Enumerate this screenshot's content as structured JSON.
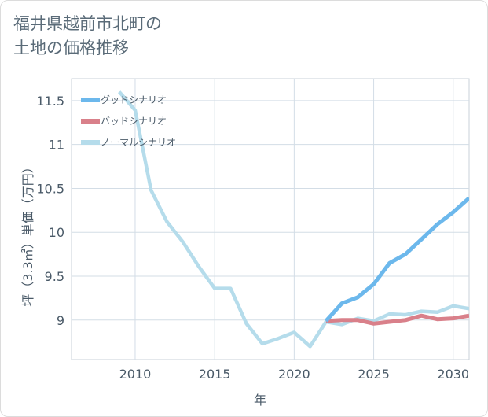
{
  "title": {
    "line1": "福井県越前市北町の",
    "line2": "土地の価格推移"
  },
  "chart_data": {
    "type": "line",
    "xlabel": "年",
    "ylabel": "坪（3.3㎡）単価（万円）",
    "xlim": [
      2006,
      2031
    ],
    "ylim": [
      8.55,
      11.75
    ],
    "xticks": [
      2010,
      2015,
      2020,
      2025,
      2030
    ],
    "yticks": [
      9,
      9.5,
      10,
      10.5,
      11,
      11.5
    ],
    "ytick_labels": [
      "9",
      "9.5",
      "10",
      "10.5",
      "11",
      "11.5"
    ],
    "grid": true,
    "legend_position": "top-left",
    "series": [
      {
        "name": "グッドシナリオ",
        "color": "#6cb8ec",
        "x": [
          2022,
          2023,
          2024,
          2025,
          2026,
          2027,
          2028,
          2029,
          2030,
          2031
        ],
        "y": [
          8.99,
          9.19,
          9.26,
          9.41,
          9.65,
          9.75,
          9.92,
          10.09,
          10.23,
          10.39
        ]
      },
      {
        "name": "バッドシナリオ",
        "color": "#d9808a",
        "x": [
          2022,
          2023,
          2024,
          2025,
          2026,
          2027,
          2028,
          2029,
          2030,
          2031
        ],
        "y": [
          8.99,
          9.0,
          9.0,
          8.96,
          8.98,
          9.0,
          9.05,
          9.01,
          9.02,
          9.05
        ]
      },
      {
        "name": "ノーマルシナリオ",
        "color": "#b5dceb",
        "x": [
          2009,
          2010,
          2011,
          2012,
          2013,
          2014,
          2015,
          2016,
          2017,
          2018,
          2019,
          2020,
          2021,
          2022,
          2023,
          2024,
          2025,
          2026,
          2027,
          2028,
          2029,
          2030,
          2031
        ],
        "y": [
          11.6,
          11.39,
          10.48,
          10.12,
          9.89,
          9.61,
          9.36,
          9.36,
          8.96,
          8.73,
          8.79,
          8.86,
          8.7,
          8.98,
          8.95,
          9.02,
          8.99,
          9.07,
          9.06,
          9.1,
          9.09,
          9.16,
          9.13
        ]
      }
    ]
  }
}
